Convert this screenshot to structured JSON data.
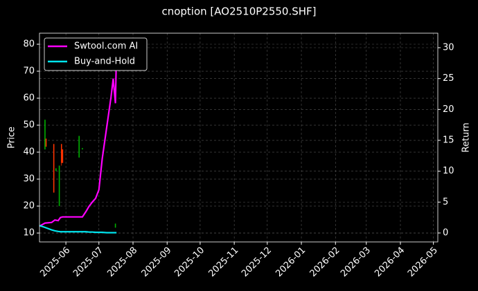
{
  "chart_data": {
    "type": "candlestick",
    "title": "cnoption [AO2510P2550.SHF]",
    "ylabel": "Price",
    "y2label": "Return",
    "up_color": "#00b000",
    "down_color": "#ff3300",
    "candles": {
      "dates": [
        "2025-05-13",
        "2025-05-14",
        "2025-05-21",
        "2025-05-23",
        "2025-05-26",
        "2025-05-28",
        "2025-05-29",
        "2025-06-13",
        "2025-06-16",
        "2025-07-16"
      ],
      "open": [
        41,
        45,
        43,
        33,
        20,
        43,
        41,
        38,
        41,
        12
      ],
      "high": [
        52,
        45,
        43,
        34,
        35,
        43,
        41,
        46,
        41.5,
        13.5
      ],
      "low": [
        41,
        42,
        25,
        33,
        20,
        35,
        36,
        38,
        41,
        12
      ],
      "close": [
        52,
        42,
        25,
        34,
        35,
        36,
        36,
        46,
        41.5,
        13.5
      ]
    },
    "x": [
      "2025-05-08",
      "2025-05-13",
      "2025-05-19",
      "2025-05-22",
      "2025-05-25",
      "2025-05-27",
      "2025-05-29",
      "2025-06-03",
      "2025-06-09",
      "2025-06-16",
      "2025-06-19",
      "2025-06-22",
      "2025-06-25",
      "2025-06-28",
      "2025-07-01",
      "2025-07-04",
      "2025-07-08",
      "2025-07-12",
      "2025-07-14",
      "2025-07-15",
      "2025-07-16",
      "2025-07-17"
    ],
    "series": [
      {
        "name": "Swtool.com AI",
        "color": "#ff00ff",
        "axis": "y2",
        "values": [
          1.1,
          1.6,
          1.7,
          2.1,
          2.0,
          2.5,
          2.6,
          2.6,
          2.6,
          2.6,
          3.4,
          4.3,
          5.0,
          5.6,
          7.0,
          12.0,
          17.0,
          22.0,
          25.0,
          23.0,
          21.0,
          29.5
        ]
      },
      {
        "name": "Buy-and-Hold",
        "color": "#00e5ee",
        "axis": "y2",
        "values": [
          1.2,
          0.9,
          0.5,
          0.35,
          0.25,
          0.2,
          0.2,
          0.2,
          0.2,
          0.2,
          0.2,
          0.15,
          0.15,
          0.1,
          0.1,
          0.1,
          0.05,
          0.05,
          0.05,
          0.05,
          0.05,
          0.05
        ]
      }
    ],
    "xlim": [
      "2025-05-08",
      "2026-05-05"
    ],
    "xticks": [
      {
        "value": "2025-06-01",
        "label": "2025-06"
      },
      {
        "value": "2025-07-01",
        "label": "2025-07"
      },
      {
        "value": "2025-08-01",
        "label": "2025-08"
      },
      {
        "value": "2025-09-01",
        "label": "2025-09"
      },
      {
        "value": "2025-10-01",
        "label": "2025-10"
      },
      {
        "value": "2025-11-01",
        "label": "2025-11"
      },
      {
        "value": "2025-12-01",
        "label": "2025-12"
      },
      {
        "value": "2026-01-01",
        "label": "2026-01"
      },
      {
        "value": "2026-02-01",
        "label": "2026-02"
      },
      {
        "value": "2026-03-01",
        "label": "2026-03"
      },
      {
        "value": "2026-04-01",
        "label": "2026-04"
      },
      {
        "value": "2026-05-01",
        "label": "2026-05"
      }
    ],
    "ylim": [
      6.7,
      84.1
    ],
    "yticks": [
      10,
      20,
      30,
      40,
      50,
      60,
      70,
      80
    ],
    "y2lim": [
      -1.45,
      32.35
    ],
    "y2ticks": [
      0,
      5,
      10,
      15,
      20,
      25,
      30
    ],
    "grid": true,
    "legend": "upper-left"
  }
}
